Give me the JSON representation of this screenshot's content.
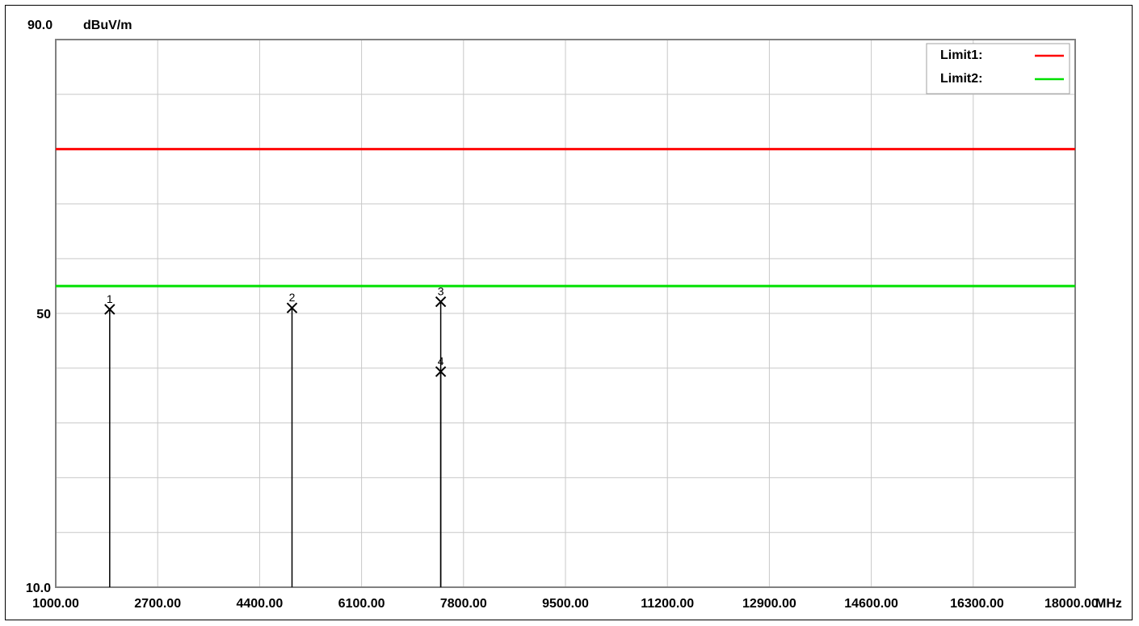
{
  "chart_data": {
    "type": "line",
    "y_top_label": "90.0",
    "y_unit": "dBuV/m",
    "x_unit": "MHz",
    "xlim": [
      1000,
      18000
    ],
    "ylim": [
      10,
      90
    ],
    "x_ticks": [
      {
        "value": 1000,
        "label": "1000.00"
      },
      {
        "value": 2700,
        "label": "2700.00"
      },
      {
        "value": 4400,
        "label": "4400.00"
      },
      {
        "value": 6100,
        "label": "6100.00"
      },
      {
        "value": 7800,
        "label": "7800.00"
      },
      {
        "value": 9500,
        "label": "9500.00"
      },
      {
        "value": 11200,
        "label": "11200.00"
      },
      {
        "value": 12900,
        "label": "12900.00"
      },
      {
        "value": 14600,
        "label": "14600.00"
      },
      {
        "value": 16300,
        "label": "16300.00"
      },
      {
        "value": 18000,
        "label": "18000.00"
      }
    ],
    "y_labels": [
      {
        "value": 50,
        "label": "50"
      },
      {
        "value": 10,
        "label": "10.0"
      }
    ],
    "y_grid": [
      18,
      26,
      34,
      42,
      50,
      58,
      66,
      74,
      82
    ],
    "grid": true,
    "limits": [
      {
        "name": "Limit1:",
        "value": 74,
        "color": "#ff0000"
      },
      {
        "name": "Limit2:",
        "value": 54,
        "color": "#00e000"
      }
    ],
    "markers": [
      {
        "label": "1",
        "x": 1900,
        "y": 50.6
      },
      {
        "label": "2",
        "x": 4940,
        "y": 50.8
      },
      {
        "label": "3",
        "x": 7420,
        "y": 51.7
      },
      {
        "label": "4",
        "x": 7420,
        "y": 41.5
      }
    ],
    "legend_position": "top-right"
  }
}
